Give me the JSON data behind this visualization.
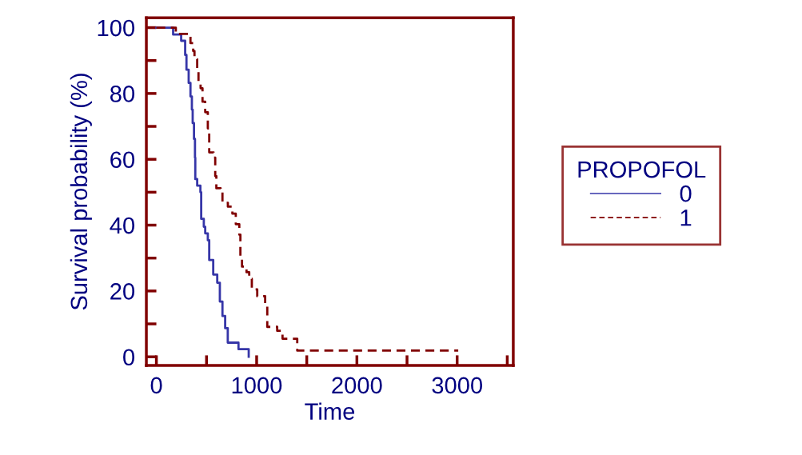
{
  "chart_data": {
    "type": "step",
    "xlabel": "Time",
    "ylabel": "Survival probability (%)",
    "legend_title": "PROPOFOL",
    "legend": "right",
    "grid": false,
    "xlim": [
      -100,
      3560
    ],
    "ylim": [
      -2.6,
      103
    ],
    "xticks": [
      0,
      {
        "value": 500,
        "label": null
      },
      1000,
      {
        "value": 1500,
        "label": null
      },
      2000,
      {
        "value": 2500,
        "label": null
      },
      3000,
      {
        "value": 3500,
        "label": null
      }
    ],
    "yticks": [
      0,
      {
        "value": 10,
        "label": null
      },
      20,
      {
        "value": 30,
        "label": null
      },
      40,
      {
        "value": 50,
        "label": null
      },
      60,
      {
        "value": 70,
        "label": null
      },
      80,
      {
        "value": 90,
        "label": null
      },
      100
    ],
    "series": [
      {
        "name": "0",
        "color": "#3636a8",
        "line_style": "solid",
        "x": [
          0,
          167,
          247,
          274,
          287,
          300,
          322,
          340,
          354,
          362,
          375,
          385,
          388,
          407,
          439,
          447,
          473,
          487,
          513,
          527,
          567,
          607,
          633,
          659,
          686,
          712,
          819,
          921
        ],
        "values": [
          100,
          97.9,
          96,
          96,
          91.7,
          87.2,
          83.2,
          79.1,
          75.1,
          71,
          66.2,
          60.5,
          54,
          52,
          50,
          41.9,
          39.5,
          37.5,
          35.4,
          29.4,
          25,
          22.5,
          16.8,
          12.4,
          8.7,
          4.3,
          2.3,
          0
        ]
      },
      {
        "name": "1",
        "color": "#800000",
        "line_style": "dashed",
        "x": [
          0,
          194,
          340,
          367,
          380,
          407,
          420,
          441,
          460,
          487,
          513,
          527,
          571,
          587,
          598,
          641,
          659,
          713,
          758,
          792,
          827,
          838,
          854,
          899,
          926,
          952,
          1006,
          1085,
          1106,
          1205,
          1258,
          1405,
          3011
        ],
        "values": [
          100,
          98.1,
          95.3,
          92.9,
          90.4,
          87.2,
          83.6,
          81.6,
          77.5,
          74.3,
          69.4,
          62.1,
          60.5,
          54.9,
          51.2,
          50,
          46.8,
          45.6,
          43.5,
          40.3,
          37.1,
          30.6,
          27.4,
          25.7,
          23.7,
          20.5,
          18.4,
          16,
          9.1,
          7.9,
          5.5,
          1.9,
          1.9
        ]
      }
    ]
  }
}
